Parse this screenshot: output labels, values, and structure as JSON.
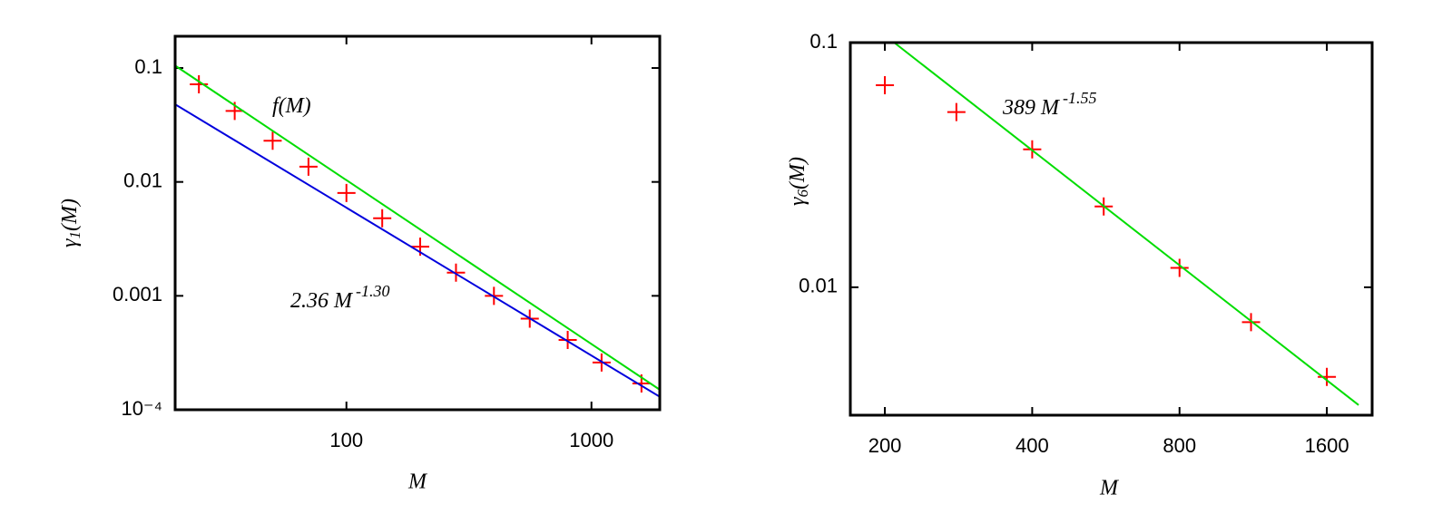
{
  "chart_data": [
    {
      "type": "scatter",
      "xlabel": "M",
      "ylabel": {
        "text": "γ",
        "sub": "1",
        "rest": "(M)"
      },
      "xscale": "log",
      "yscale": "log",
      "xlim": [
        20,
        1900
      ],
      "ylim": [
        0.0001,
        0.19
      ],
      "xticks": [
        100,
        1000
      ],
      "yticks": [
        {
          "value": 0.0001,
          "label": "10⁻⁴"
        },
        0.001,
        0.01,
        0.1
      ],
      "annotations": [
        {
          "text": "f(M)"
        },
        {
          "text": "2.36 M",
          "sup": "-1.30"
        }
      ],
      "series": [
        {
          "color": "#ff0000",
          "marker": "+",
          "x": [
            25,
            35,
            50,
            70,
            100,
            140,
            200,
            280,
            400,
            560,
            800,
            1100,
            1600
          ],
          "values": [
            0.072,
            0.042,
            0.023,
            0.0136,
            0.008,
            0.0048,
            0.0027,
            0.0016,
            0.001,
            0.00063,
            0.00041,
            0.00026,
            0.00017
          ]
        },
        {
          "color": "#00dd00",
          "line": true,
          "x": [
            20,
            1900
          ],
          "values": [
            0.105,
            0.00015
          ]
        },
        {
          "color": "#0000dd",
          "line": true,
          "x": [
            20,
            1900
          ],
          "values": [
            0.048,
            0.00013
          ]
        }
      ]
    },
    {
      "type": "scatter",
      "xlabel": "M",
      "ylabel": {
        "text": "γ",
        "sub": "6",
        "rest": "(M)"
      },
      "xscale": "log",
      "yscale": "log",
      "xlim": [
        170,
        1980
      ],
      "ylim": [
        0.003,
        0.1
      ],
      "xticks": [
        200,
        400,
        800,
        1600
      ],
      "yticks": [
        0.01,
        0.1
      ],
      "annotations": [
        {
          "text": "389 M",
          "sup": "-1.55"
        }
      ],
      "series": [
        {
          "color": "#ff0000",
          "marker": "+",
          "x": [
            200,
            280,
            400,
            560,
            800,
            1120,
            1600
          ],
          "values": [
            0.067,
            0.052,
            0.0366,
            0.0214,
            0.012,
            0.0072,
            0.0043
          ]
        },
        {
          "color": "#00dd00",
          "line": true,
          "x": [
            209,
            1858
          ],
          "values": [
            0.1,
            0.0033
          ]
        }
      ]
    }
  ]
}
